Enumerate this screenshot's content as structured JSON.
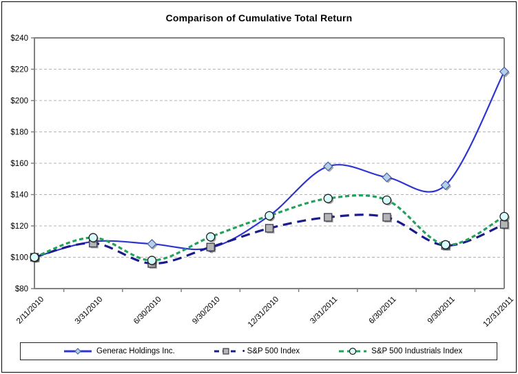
{
  "chart_data": {
    "type": "line",
    "title": "Comparison of Cumulative Total Return",
    "xlabel": "",
    "ylabel": "",
    "ylim": [
      80,
      240
    ],
    "y_tick_step": 20,
    "y_tick_labels": [
      "$240",
      "$220",
      "$200",
      "$180",
      "$160",
      "$140",
      "$120",
      "$100",
      "$80"
    ],
    "grid": "horizontal-dashed",
    "legend_position": "bottom-box",
    "smooth_lines": true,
    "categories": [
      "2/11/2010",
      "3/31/2010",
      "6/30/2010",
      "9/30/2010",
      "12/31/2010",
      "3/31/2011",
      "6/30/2011",
      "9/30/2011",
      "12/31/2011"
    ],
    "series": [
      {
        "name": "Generac Holdings Inc.",
        "values": [
          100,
          110,
          108.5,
          106,
          126.5,
          158,
          151,
          146,
          218.5
        ],
        "color": "#2d34d0",
        "line_style": "solid",
        "dash": "",
        "width": 2.2,
        "marker": "diamond",
        "marker_fill": "#b7d0e8",
        "marker_stroke": "#4a66ac"
      },
      {
        "name": "S&P 500 Index",
        "values": [
          100,
          109,
          96,
          106.5,
          118.5,
          125.5,
          125.5,
          107.5,
          121
        ],
        "color": "#1b1b8e",
        "line_style": "long-dash",
        "dash": "13 8",
        "width": 3.2,
        "marker": "square",
        "marker_fill": "#b5b5b5",
        "marker_stroke": "#3a3a52"
      },
      {
        "name": "S&P 500 Industrials Index",
        "values": [
          100,
          112.5,
          98,
          113,
          126.5,
          137.5,
          136.5,
          108,
          126
        ],
        "color": "#21a15c",
        "line_style": "short-dash",
        "dash": "6 4",
        "width": 3.2,
        "marker": "circle",
        "marker_fill": "#d8fbfb",
        "marker_stroke": "#1b1b1b"
      }
    ]
  },
  "legend": {
    "sp500_bullet": "•"
  },
  "colors": {
    "axis": "#808080",
    "gridline": "#b3b3b3",
    "text": "#000000",
    "background": "#ffffff",
    "generac_blue": "#2d34d0",
    "sp500_navy": "#1b1b8e",
    "industrials_green": "#21a15c"
  }
}
